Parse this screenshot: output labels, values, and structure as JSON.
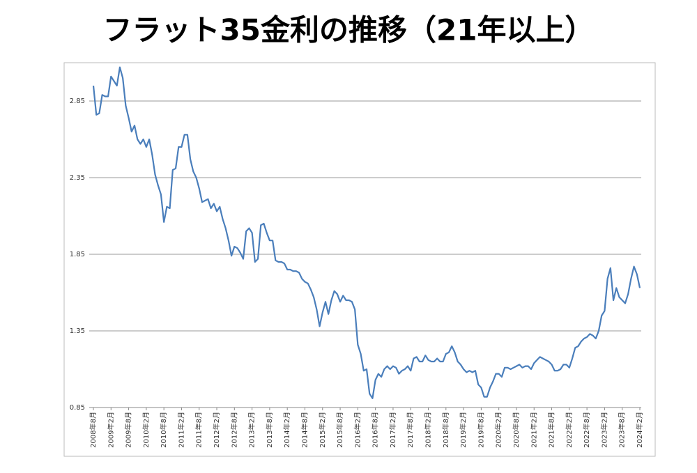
{
  "chart_data": {
    "type": "line",
    "title": "フラット35金利の推移（21年以上）",
    "categories": [
      "2008年8月",
      null,
      null,
      null,
      null,
      null,
      "2009年2月",
      null,
      null,
      null,
      null,
      null,
      "2009年8月",
      null,
      null,
      null,
      null,
      null,
      "2010年2月",
      null,
      null,
      null,
      null,
      null,
      "2010年8月",
      null,
      null,
      null,
      null,
      null,
      "2011年2月",
      null,
      null,
      null,
      null,
      null,
      "2011年8月",
      null,
      null,
      null,
      null,
      null,
      "2012年2月",
      null,
      null,
      null,
      null,
      null,
      "2012年8月",
      null,
      null,
      null,
      null,
      null,
      "2013年2月",
      null,
      null,
      null,
      null,
      null,
      "2013年8月",
      null,
      null,
      null,
      null,
      null,
      "2014年2月",
      null,
      null,
      null,
      null,
      null,
      "2014年8月",
      null,
      null,
      null,
      null,
      null,
      "2015年2月",
      null,
      null,
      null,
      null,
      null,
      "2015年8月",
      null,
      null,
      null,
      null,
      null,
      "2016年2月",
      null,
      null,
      null,
      null,
      null,
      "2016年8月",
      null,
      null,
      null,
      null,
      null,
      "2017年2月",
      null,
      null,
      null,
      null,
      null,
      "2017年8月",
      null,
      null,
      null,
      null,
      null,
      "2018年2月",
      null,
      null,
      null,
      null,
      null,
      "2018年8月",
      null,
      null,
      null,
      null,
      null,
      "2019年2月",
      null,
      null,
      null,
      null,
      null,
      "2019年8月",
      null,
      null,
      null,
      null,
      null,
      "2020年2月",
      null,
      null,
      null,
      null,
      null,
      "2020年8月",
      null,
      null,
      null,
      null,
      null,
      "2021年2月",
      null,
      null,
      null,
      null,
      null,
      "2021年8月",
      null,
      null,
      null,
      null,
      null,
      "2022年2月",
      null,
      null,
      null,
      null,
      null,
      "2022年8月",
      null,
      null,
      null,
      null,
      null,
      "2023年2月",
      null,
      null,
      null,
      null,
      null,
      "2023年8月",
      null,
      null,
      null,
      null,
      null,
      "2024年2月"
    ],
    "values": [
      2.95,
      2.76,
      2.77,
      2.89,
      2.88,
      2.88,
      3.01,
      2.98,
      2.95,
      3.07,
      3.0,
      2.82,
      2.74,
      2.65,
      2.69,
      2.6,
      2.57,
      2.6,
      2.55,
      2.6,
      2.5,
      2.37,
      2.3,
      2.24,
      2.06,
      2.16,
      2.15,
      2.4,
      2.41,
      2.55,
      2.55,
      2.63,
      2.63,
      2.47,
      2.39,
      2.35,
      2.28,
      2.19,
      2.2,
      2.21,
      2.15,
      2.18,
      2.13,
      2.16,
      2.08,
      2.02,
      1.94,
      1.84,
      1.9,
      1.89,
      1.86,
      1.82,
      2.0,
      2.02,
      1.99,
      1.8,
      1.82,
      2.04,
      2.05,
      1.99,
      1.94,
      1.94,
      1.81,
      1.8,
      1.8,
      1.79,
      1.75,
      1.75,
      1.74,
      1.74,
      1.73,
      1.69,
      1.67,
      1.66,
      1.62,
      1.57,
      1.49,
      1.38,
      1.47,
      1.54,
      1.46,
      1.55,
      1.61,
      1.59,
      1.54,
      1.58,
      1.55,
      1.55,
      1.54,
      1.49,
      1.26,
      1.2,
      1.09,
      1.1,
      0.94,
      0.91,
      1.03,
      1.07,
      1.05,
      1.1,
      1.12,
      1.1,
      1.12,
      1.11,
      1.07,
      1.09,
      1.1,
      1.12,
      1.09,
      1.17,
      1.18,
      1.15,
      1.15,
      1.19,
      1.16,
      1.15,
      1.15,
      1.17,
      1.15,
      1.15,
      1.2,
      1.21,
      1.25,
      1.21,
      1.15,
      1.13,
      1.1,
      1.08,
      1.09,
      1.08,
      1.09,
      1.0,
      0.98,
      0.92,
      0.92,
      0.98,
      1.02,
      1.07,
      1.07,
      1.05,
      1.11,
      1.11,
      1.1,
      1.11,
      1.12,
      1.13,
      1.11,
      1.12,
      1.12,
      1.1,
      1.14,
      1.16,
      1.18,
      1.17,
      1.16,
      1.15,
      1.13,
      1.09,
      1.09,
      1.1,
      1.13,
      1.13,
      1.11,
      1.17,
      1.24,
      1.25,
      1.28,
      1.3,
      1.31,
      1.33,
      1.32,
      1.3,
      1.35,
      1.45,
      1.48,
      1.69,
      1.76,
      1.55,
      1.63,
      1.57,
      1.55,
      1.53,
      1.59,
      1.69,
      1.77,
      1.72,
      1.63
    ],
    "color": "#4a7ebb",
    "ylim": [
      0.85,
      3.08
    ],
    "yticks": [
      0.85,
      1.35,
      1.85,
      2.35,
      2.85
    ],
    "grid": true
  }
}
